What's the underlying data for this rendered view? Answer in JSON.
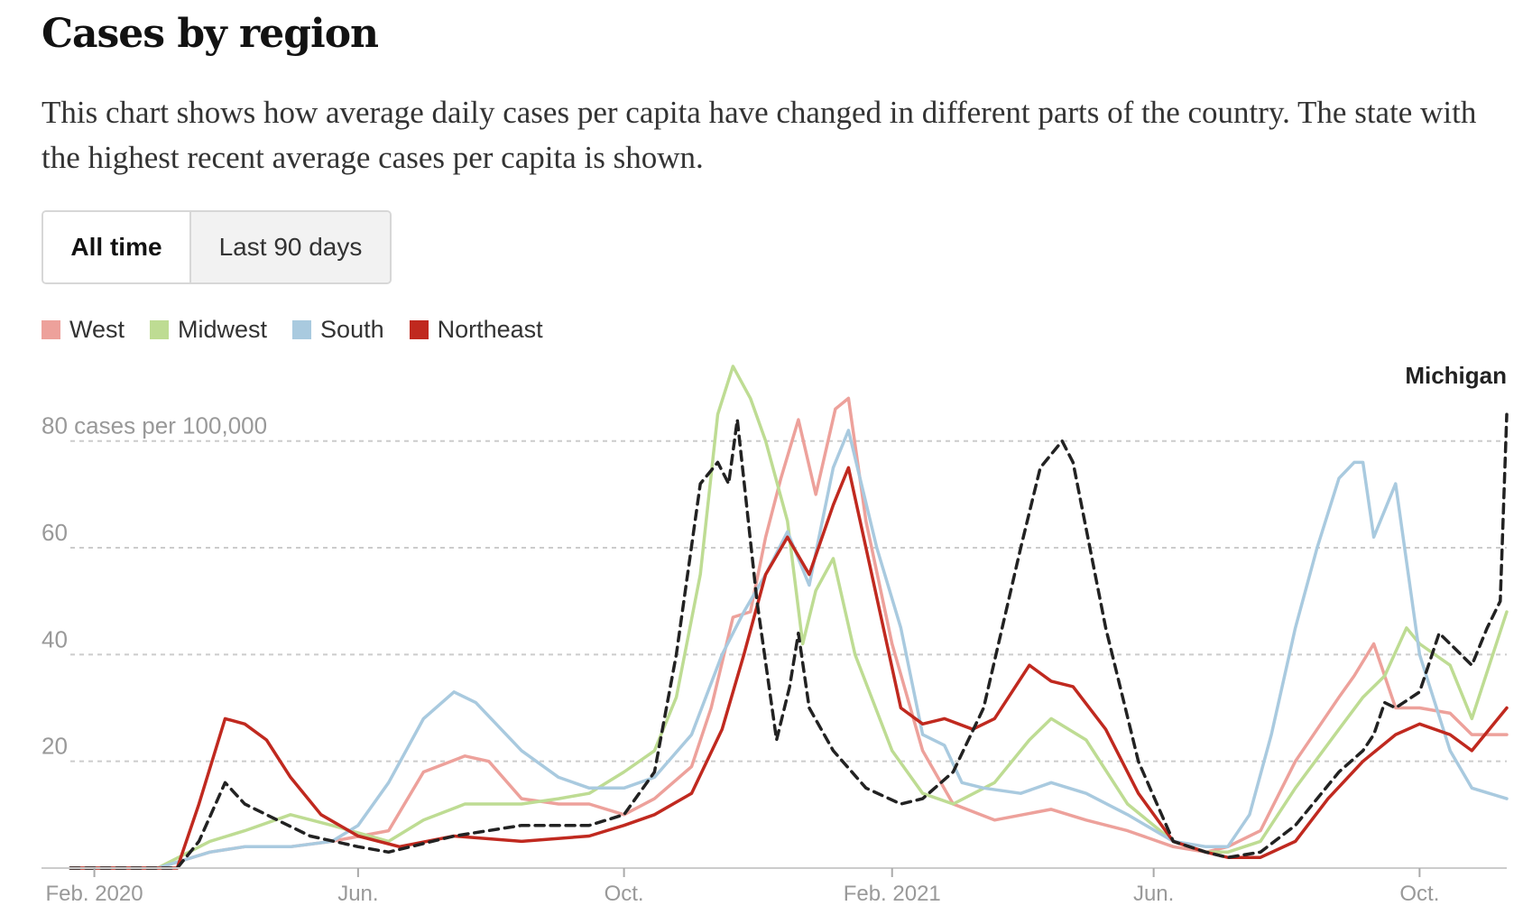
{
  "header": {
    "title": "Cases by region",
    "subtitle": "This chart shows how average daily cases per capita have changed in different parts of the country. The state with the highest recent average cases per capita is shown."
  },
  "toggle": {
    "options": [
      {
        "label": "All time",
        "active": true
      },
      {
        "label": "Last 90 days",
        "active": false
      }
    ]
  },
  "legend": [
    {
      "name": "West",
      "color": "#eda19b"
    },
    {
      "name": "Midwest",
      "color": "#bedc93"
    },
    {
      "name": "South",
      "color": "#a9cadf"
    },
    {
      "name": "Northeast",
      "color": "#c0291f"
    }
  ],
  "chart_data": {
    "type": "line",
    "unit_label": "80 cases per 100,000",
    "y_ticks": [
      {
        "value": 20,
        "label": "20"
      },
      {
        "value": 40,
        "label": "40"
      },
      {
        "value": 60,
        "label": "60"
      },
      {
        "value": 80,
        "label": "80 cases per 100,000"
      }
    ],
    "x_ticks": [
      {
        "date": "2020-02-01",
        "label": "Feb. 2020"
      },
      {
        "date": "2020-06-01",
        "label": "Jun."
      },
      {
        "date": "2020-10-01",
        "label": "Oct."
      },
      {
        "date": "2021-02-01",
        "label": "Feb. 2021"
      },
      {
        "date": "2021-06-01",
        "label": "Jun."
      },
      {
        "date": "2021-10-01",
        "label": "Oct."
      }
    ],
    "x_range": [
      "2020-01-21",
      "2021-11-10"
    ],
    "y_range": [
      0,
      95
    ],
    "grid": "horizontal-dashed",
    "legend_position": "top-left",
    "series": [
      {
        "name": "West",
        "color": "#eda19b",
        "dashed": false,
        "x": [
          "2020-01-21",
          "2020-03-01",
          "2020-03-25",
          "2020-04-10",
          "2020-05-01",
          "2020-05-20",
          "2020-06-15",
          "2020-07-01",
          "2020-07-20",
          "2020-07-31",
          "2020-08-15",
          "2020-09-01",
          "2020-09-15",
          "2020-10-01",
          "2020-10-15",
          "2020-11-01",
          "2020-11-10",
          "2020-11-20",
          "2020-11-28",
          "2020-12-05",
          "2020-12-12",
          "2020-12-20",
          "2020-12-28",
          "2021-01-06",
          "2021-01-12",
          "2021-01-20",
          "2021-02-01",
          "2021-02-15",
          "2021-03-01",
          "2021-03-20",
          "2021-04-15",
          "2021-05-01",
          "2021-05-20",
          "2021-06-10",
          "2021-06-25",
          "2021-07-05",
          "2021-07-20",
          "2021-08-05",
          "2021-08-25",
          "2021-09-01",
          "2021-09-10",
          "2021-09-20",
          "2021-10-01",
          "2021-10-15",
          "2021-10-25",
          "2021-11-10"
        ],
        "y": [
          0,
          0,
          3,
          4,
          4,
          5,
          7,
          18,
          21,
          20,
          13,
          12,
          12,
          10,
          13,
          19,
          30,
          47,
          48,
          62,
          73,
          84,
          70,
          86,
          88,
          65,
          42,
          22,
          12,
          9,
          11,
          9,
          7,
          4,
          3,
          4,
          7,
          20,
          32,
          36,
          42,
          30,
          30,
          29,
          25,
          25
        ]
      },
      {
        "name": "Midwest",
        "color": "#bedc93",
        "dashed": false,
        "x": [
          "2020-01-21",
          "2020-03-01",
          "2020-03-25",
          "2020-04-10",
          "2020-05-01",
          "2020-05-20",
          "2020-06-15",
          "2020-07-01",
          "2020-07-20",
          "2020-08-15",
          "2020-09-01",
          "2020-09-15",
          "2020-10-01",
          "2020-10-15",
          "2020-10-25",
          "2020-11-05",
          "2020-11-13",
          "2020-11-20",
          "2020-11-28",
          "2020-12-05",
          "2020-12-15",
          "2020-12-22",
          "2020-12-28",
          "2021-01-05",
          "2021-01-15",
          "2021-02-01",
          "2021-02-15",
          "2021-03-01",
          "2021-03-20",
          "2021-04-05",
          "2021-04-15",
          "2021-05-01",
          "2021-05-20",
          "2021-06-10",
          "2021-06-25",
          "2021-07-05",
          "2021-07-20",
          "2021-08-05",
          "2021-08-25",
          "2021-09-05",
          "2021-09-15",
          "2021-09-25",
          "2021-10-01",
          "2021-10-15",
          "2021-10-25",
          "2021-11-10"
        ],
        "y": [
          0,
          0,
          5,
          7,
          10,
          8,
          5,
          9,
          12,
          12,
          13,
          14,
          18,
          22,
          32,
          55,
          85,
          94,
          88,
          80,
          65,
          42,
          52,
          58,
          40,
          22,
          14,
          12,
          16,
          24,
          28,
          24,
          12,
          5,
          3,
          3,
          5,
          15,
          26,
          32,
          36,
          45,
          42,
          38,
          28,
          48
        ]
      },
      {
        "name": "South",
        "color": "#a9cadf",
        "dashed": false,
        "x": [
          "2020-01-21",
          "2020-03-01",
          "2020-03-25",
          "2020-04-10",
          "2020-05-01",
          "2020-05-20",
          "2020-06-01",
          "2020-06-15",
          "2020-07-01",
          "2020-07-15",
          "2020-07-25",
          "2020-08-15",
          "2020-09-01",
          "2020-09-15",
          "2020-10-01",
          "2020-10-15",
          "2020-11-01",
          "2020-11-15",
          "2020-11-25",
          "2020-12-05",
          "2020-12-15",
          "2020-12-25",
          "2021-01-05",
          "2021-01-12",
          "2021-01-25",
          "2021-02-05",
          "2021-02-15",
          "2021-02-25",
          "2021-03-05",
          "2021-03-15",
          "2021-04-01",
          "2021-04-15",
          "2021-05-01",
          "2021-05-20",
          "2021-06-10",
          "2021-06-25",
          "2021-07-05",
          "2021-07-15",
          "2021-07-25",
          "2021-08-05",
          "2021-08-15",
          "2021-08-25",
          "2021-09-01",
          "2021-09-05",
          "2021-09-10",
          "2021-09-20",
          "2021-10-01",
          "2021-10-15",
          "2021-10-25",
          "2021-11-10"
        ],
        "y": [
          0,
          0,
          3,
          4,
          4,
          5,
          8,
          16,
          28,
          33,
          31,
          22,
          17,
          15,
          15,
          17,
          25,
          40,
          48,
          55,
          63,
          53,
          75,
          82,
          60,
          45,
          25,
          23,
          16,
          15,
          14,
          16,
          14,
          10,
          5,
          4,
          4,
          10,
          25,
          45,
          60,
          73,
          76,
          76,
          62,
          72,
          40,
          22,
          15,
          13
        ]
      },
      {
        "name": "Northeast",
        "color": "#c0291f",
        "dashed": false,
        "x": [
          "2020-01-21",
          "2020-03-10",
          "2020-03-20",
          "2020-04-01",
          "2020-04-10",
          "2020-04-20",
          "2020-05-01",
          "2020-05-15",
          "2020-06-01",
          "2020-06-20",
          "2020-07-15",
          "2020-08-15",
          "2020-09-15",
          "2020-10-01",
          "2020-10-15",
          "2020-11-01",
          "2020-11-15",
          "2020-11-25",
          "2020-12-05",
          "2020-12-15",
          "2020-12-25",
          "2021-01-05",
          "2021-01-12",
          "2021-01-20",
          "2021-02-05",
          "2021-02-15",
          "2021-02-25",
          "2021-03-10",
          "2021-03-20",
          "2021-04-05",
          "2021-04-15",
          "2021-04-25",
          "2021-05-10",
          "2021-05-25",
          "2021-06-10",
          "2021-06-25",
          "2021-07-05",
          "2021-07-20",
          "2021-08-05",
          "2021-08-20",
          "2021-09-05",
          "2021-09-20",
          "2021-10-01",
          "2021-10-15",
          "2021-10-25",
          "2021-11-10"
        ],
        "y": [
          0,
          0,
          12,
          28,
          27,
          24,
          17,
          10,
          6,
          4,
          6,
          5,
          6,
          8,
          10,
          14,
          26,
          40,
          55,
          62,
          55,
          68,
          75,
          60,
          30,
          27,
          28,
          26,
          28,
          38,
          35,
          34,
          26,
          14,
          5,
          3,
          2,
          2,
          5,
          13,
          20,
          25,
          27,
          25,
          22,
          30
        ]
      },
      {
        "name": "Michigan",
        "color": "#222222",
        "dashed": true,
        "label": "Michigan",
        "x": [
          "2020-01-21",
          "2020-03-10",
          "2020-03-20",
          "2020-04-01",
          "2020-04-10",
          "2020-04-25",
          "2020-05-10",
          "2020-06-01",
          "2020-06-15",
          "2020-07-15",
          "2020-08-15",
          "2020-09-15",
          "2020-10-01",
          "2020-10-15",
          "2020-10-25",
          "2020-11-05",
          "2020-11-13",
          "2020-11-18",
          "2020-11-22",
          "2020-12-01",
          "2020-12-10",
          "2020-12-16",
          "2020-12-20",
          "2020-12-25",
          "2021-01-05",
          "2021-01-20",
          "2021-02-05",
          "2021-02-15",
          "2021-03-01",
          "2021-03-15",
          "2021-04-01",
          "2021-04-10",
          "2021-04-20",
          "2021-04-25",
          "2021-05-10",
          "2021-05-25",
          "2021-06-10",
          "2021-06-25",
          "2021-07-05",
          "2021-07-20",
          "2021-08-05",
          "2021-08-25",
          "2021-09-05",
          "2021-09-10",
          "2021-09-15",
          "2021-09-20",
          "2021-10-01",
          "2021-10-10",
          "2021-10-15",
          "2021-10-25",
          "2021-11-01",
          "2021-11-07",
          "2021-11-10"
        ],
        "y": [
          0,
          0,
          5,
          16,
          12,
          9,
          6,
          4,
          3,
          6,
          8,
          8,
          10,
          18,
          40,
          72,
          76,
          72,
          84,
          50,
          24,
          34,
          44,
          30,
          22,
          15,
          12,
          13,
          18,
          30,
          60,
          75,
          80,
          76,
          45,
          20,
          5,
          3,
          2,
          3,
          8,
          18,
          22,
          25,
          31,
          30,
          33,
          44,
          42,
          38,
          45,
          50,
          85
        ]
      }
    ]
  }
}
